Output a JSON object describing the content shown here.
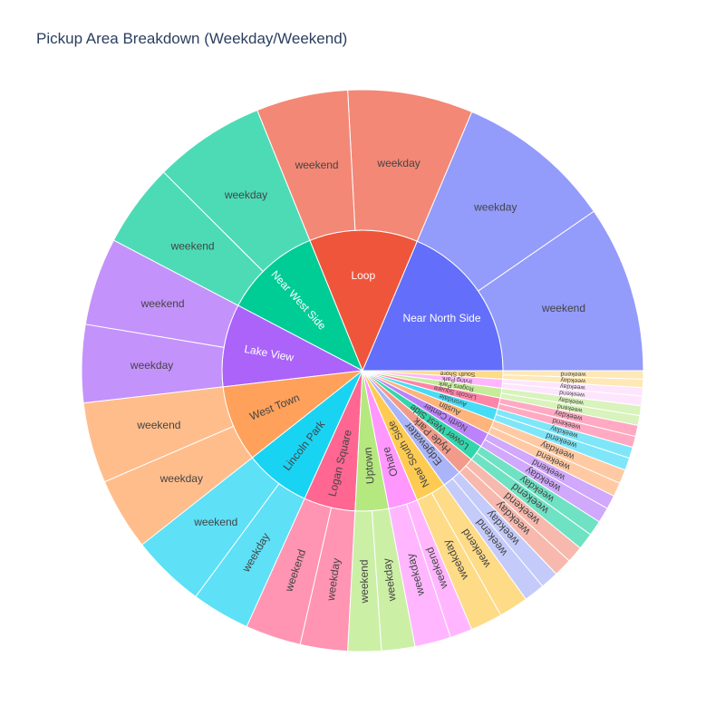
{
  "chart_data": {
    "type": "sunburst",
    "title": "Pickup Area Breakdown (Weekday/Weekend)",
    "inner_ring": "pickup area",
    "outer_ring": "day type",
    "areas": [
      {
        "name": "Near North Side",
        "color": "#636efa",
        "child_color": "#939bfb",
        "children": [
          {
            "label": "weekend",
            "value": 120
          },
          {
            "label": "weekday",
            "value": 113
          }
        ]
      },
      {
        "name": "Loop",
        "color": "#ef553b",
        "child_color": "#f38876",
        "children": [
          {
            "label": "weekday",
            "value": 90
          },
          {
            "label": "weekend",
            "value": 66
          }
        ]
      },
      {
        "name": "Near West Side",
        "color": "#00cc96",
        "child_color": "#4ddbb6",
        "children": [
          {
            "label": "weekday",
            "value": 80
          },
          {
            "label": "weekend",
            "value": 60
          }
        ]
      },
      {
        "name": "Lake View",
        "color": "#ab63fa",
        "child_color": "#c492fb",
        "children": [
          {
            "label": "weekend",
            "value": 63
          },
          {
            "label": "weekday",
            "value": 56
          }
        ]
      },
      {
        "name": "West Town",
        "color": "#ffa15a",
        "child_color": "#ffbd8c",
        "children": [
          {
            "label": "weekend",
            "value": 58
          },
          {
            "label": "weekday",
            "value": 52
          }
        ]
      },
      {
        "name": "Lincoln Park",
        "color": "#19d3f3",
        "child_color": "#5ee0f7",
        "children": [
          {
            "label": "weekend",
            "value": 53
          },
          {
            "label": "weekday",
            "value": 42
          }
        ]
      },
      {
        "name": "Logan Square",
        "color": "#ff6692",
        "child_color": "#ff94b3",
        "children": [
          {
            "label": "weekend",
            "value": 40
          },
          {
            "label": "weekday",
            "value": 34
          }
        ]
      },
      {
        "name": "Uptown",
        "color": "#b6e880",
        "child_color": "#ccefa6",
        "children": [
          {
            "label": "weekend",
            "value": 24
          },
          {
            "label": "weekday",
            "value": 24
          }
        ]
      },
      {
        "name": "Ohare",
        "color": "#ff97ff",
        "child_color": "#ffb6ff",
        "children": [
          {
            "label": "weekday",
            "value": 26
          },
          {
            "label": "weekend",
            "value": 16
          }
        ]
      },
      {
        "name": "Near South Side",
        "color": "#fecb52",
        "child_color": "#fedb86",
        "children": [
          {
            "label": "weekday",
            "value": 23
          },
          {
            "label": "weekend",
            "value": 21
          }
        ]
      },
      {
        "name": "Edgewater",
        "color": "#aab4f8",
        "child_color": "#c4cbfa",
        "children": [
          {
            "label": "weekend",
            "value": 15
          },
          {
            "label": "weekday",
            "value": 13
          }
        ]
      },
      {
        "name": "Hyde Park",
        "color": "#f39b8a",
        "child_color": "#f7b9ad",
        "children": [
          {
            "label": "weekday",
            "value": 13
          },
          {
            "label": "weekend",
            "value": 12
          }
        ]
      },
      {
        "name": "Lower West Side",
        "color": "#33d6ab",
        "child_color": "#70e2c4",
        "children": [
          {
            "label": "weekend",
            "value": 12
          },
          {
            "label": "weekday",
            "value": 11
          }
        ]
      },
      {
        "name": "North Center",
        "color": "#bc82fb",
        "child_color": "#d0a8fc",
        "children": [
          {
            "label": "weekday",
            "value": 11
          },
          {
            "label": "weekend",
            "value": 10
          }
        ]
      },
      {
        "name": "Austin",
        "color": "#ffb47b",
        "child_color": "#ffcaa3",
        "children": [
          {
            "label": "weekend",
            "value": 10
          },
          {
            "label": "weekday",
            "value": 10
          }
        ]
      },
      {
        "name": "Avondale",
        "color": "#47dcf5",
        "child_color": "#7ee6f8",
        "children": [
          {
            "label": "weekend",
            "value": 9
          },
          {
            "label": "weekday",
            "value": 8
          }
        ]
      },
      {
        "name": "Lincoln Square",
        "color": "#ff85a8",
        "child_color": "#ffaac2",
        "children": [
          {
            "label": "weekend",
            "value": 8
          },
          {
            "label": "weekday",
            "value": 8
          }
        ]
      },
      {
        "name": "Rogers Park",
        "color": "#c5ed99",
        "child_color": "#d8f3bb",
        "children": [
          {
            "label": "weekend",
            "value": 7
          },
          {
            "label": "weekday",
            "value": 7
          }
        ]
      },
      {
        "name": "Irving Park",
        "color": "#ffb6ff",
        "child_color": "#fde6fd",
        "children": [
          {
            "label": "weekend",
            "value": 7
          },
          {
            "label": "weekday",
            "value": 6
          }
        ]
      },
      {
        "name": "South Shore",
        "color": "#fedb86",
        "child_color": "#fee8b6",
        "children": [
          {
            "label": "weekday",
            "value": 6
          },
          {
            "label": "weekend",
            "value": 6
          }
        ]
      }
    ]
  }
}
